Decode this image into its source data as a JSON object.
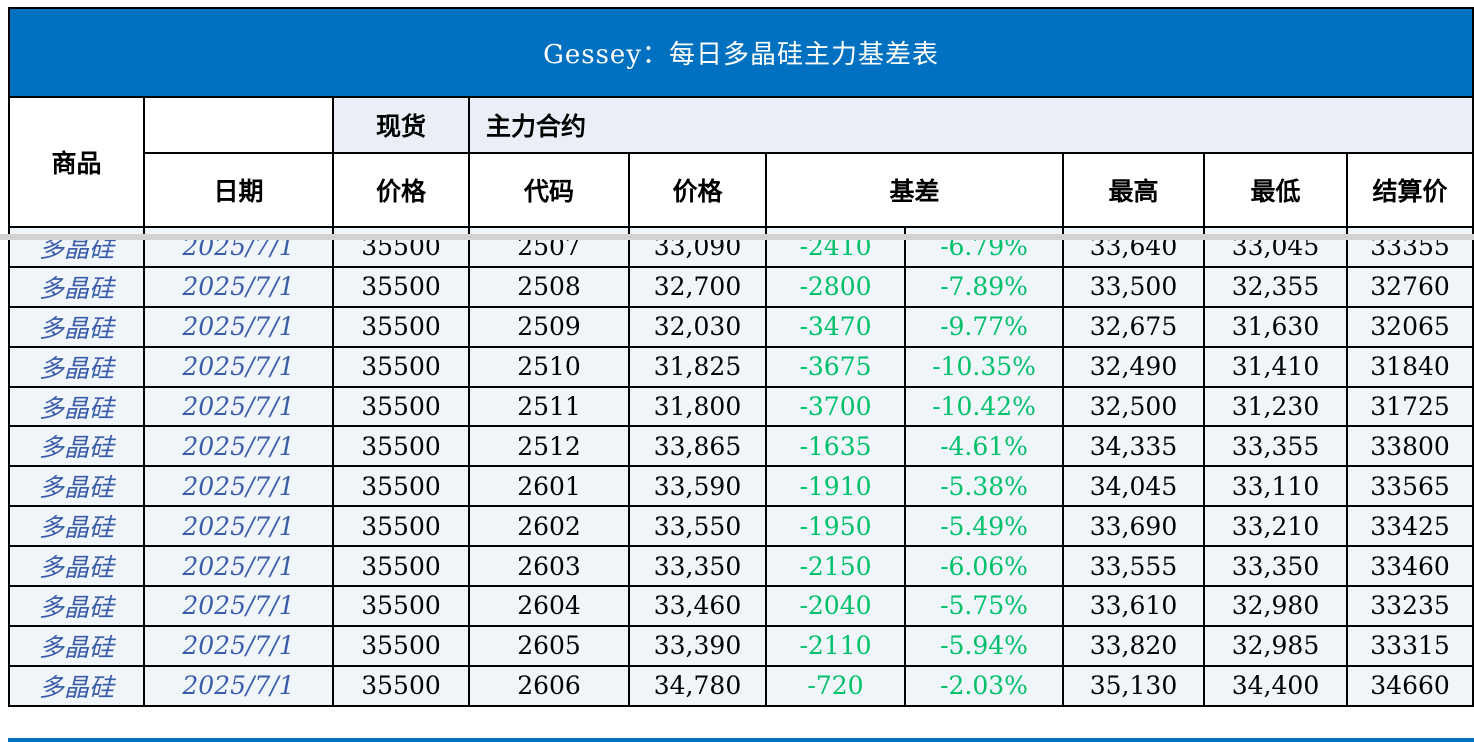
{
  "title": "Gessey：每日多晶硅主力基差表",
  "colors": {
    "title_bg": "#0070C0",
    "title_text": "#FFFFFF",
    "header_band_bg": "#E9EEF7",
    "row_bg": "#F0F5FA",
    "grid_line": "#000000",
    "commodity_date_text": "#3A5CA9",
    "basis_text": "#00C06A",
    "freeze_divider": "#D2D2D2",
    "bottom_strip": "#0070C0"
  },
  "table": {
    "headers": {
      "commodity": "商品",
      "date": "日期",
      "spot_group": "现货",
      "main_contract_group": "主力合约",
      "spot_price": "价格",
      "code": "代码",
      "price": "价格",
      "basis": "基差",
      "high": "最高",
      "low": "最低",
      "settle": "结算价"
    },
    "rows": [
      {
        "commodity": "多晶硅",
        "date": "2025/7/1",
        "spot_price": "35500",
        "code": "2507",
        "price": "33,090",
        "basis": "-2410",
        "basis_pct": "-6.79%",
        "high": "33,640",
        "low": "33,045",
        "settle": "33355"
      },
      {
        "commodity": "多晶硅",
        "date": "2025/7/1",
        "spot_price": "35500",
        "code": "2508",
        "price": "32,700",
        "basis": "-2800",
        "basis_pct": "-7.89%",
        "high": "33,500",
        "low": "32,355",
        "settle": "32760"
      },
      {
        "commodity": "多晶硅",
        "date": "2025/7/1",
        "spot_price": "35500",
        "code": "2509",
        "price": "32,030",
        "basis": "-3470",
        "basis_pct": "-9.77%",
        "high": "32,675",
        "low": "31,630",
        "settle": "32065"
      },
      {
        "commodity": "多晶硅",
        "date": "2025/7/1",
        "spot_price": "35500",
        "code": "2510",
        "price": "31,825",
        "basis": "-3675",
        "basis_pct": "-10.35%",
        "high": "32,490",
        "low": "31,410",
        "settle": "31840"
      },
      {
        "commodity": "多晶硅",
        "date": "2025/7/1",
        "spot_price": "35500",
        "code": "2511",
        "price": "31,800",
        "basis": "-3700",
        "basis_pct": "-10.42%",
        "high": "32,500",
        "low": "31,230",
        "settle": "31725"
      },
      {
        "commodity": "多晶硅",
        "date": "2025/7/1",
        "spot_price": "35500",
        "code": "2512",
        "price": "33,865",
        "basis": "-1635",
        "basis_pct": "-4.61%",
        "high": "34,335",
        "low": "33,355",
        "settle": "33800"
      },
      {
        "commodity": "多晶硅",
        "date": "2025/7/1",
        "spot_price": "35500",
        "code": "2601",
        "price": "33,590",
        "basis": "-1910",
        "basis_pct": "-5.38%",
        "high": "34,045",
        "low": "33,110",
        "settle": "33565"
      },
      {
        "commodity": "多晶硅",
        "date": "2025/7/1",
        "spot_price": "35500",
        "code": "2602",
        "price": "33,550",
        "basis": "-1950",
        "basis_pct": "-5.49%",
        "high": "33,690",
        "low": "33,210",
        "settle": "33425"
      },
      {
        "commodity": "多晶硅",
        "date": "2025/7/1",
        "spot_price": "35500",
        "code": "2603",
        "price": "33,350",
        "basis": "-2150",
        "basis_pct": "-6.06%",
        "high": "33,555",
        "low": "33,350",
        "settle": "33460"
      },
      {
        "commodity": "多晶硅",
        "date": "2025/7/1",
        "spot_price": "35500",
        "code": "2604",
        "price": "33,460",
        "basis": "-2040",
        "basis_pct": "-5.75%",
        "high": "33,610",
        "low": "32,980",
        "settle": "33235"
      },
      {
        "commodity": "多晶硅",
        "date": "2025/7/1",
        "spot_price": "35500",
        "code": "2605",
        "price": "33,390",
        "basis": "-2110",
        "basis_pct": "-5.94%",
        "high": "33,820",
        "low": "32,985",
        "settle": "33315"
      },
      {
        "commodity": "多晶硅",
        "date": "2025/7/1",
        "spot_price": "35500",
        "code": "2606",
        "price": "34,780",
        "basis": "-720",
        "basis_pct": "-2.03%",
        "high": "35,130",
        "low": "34,400",
        "settle": "34660"
      }
    ]
  }
}
